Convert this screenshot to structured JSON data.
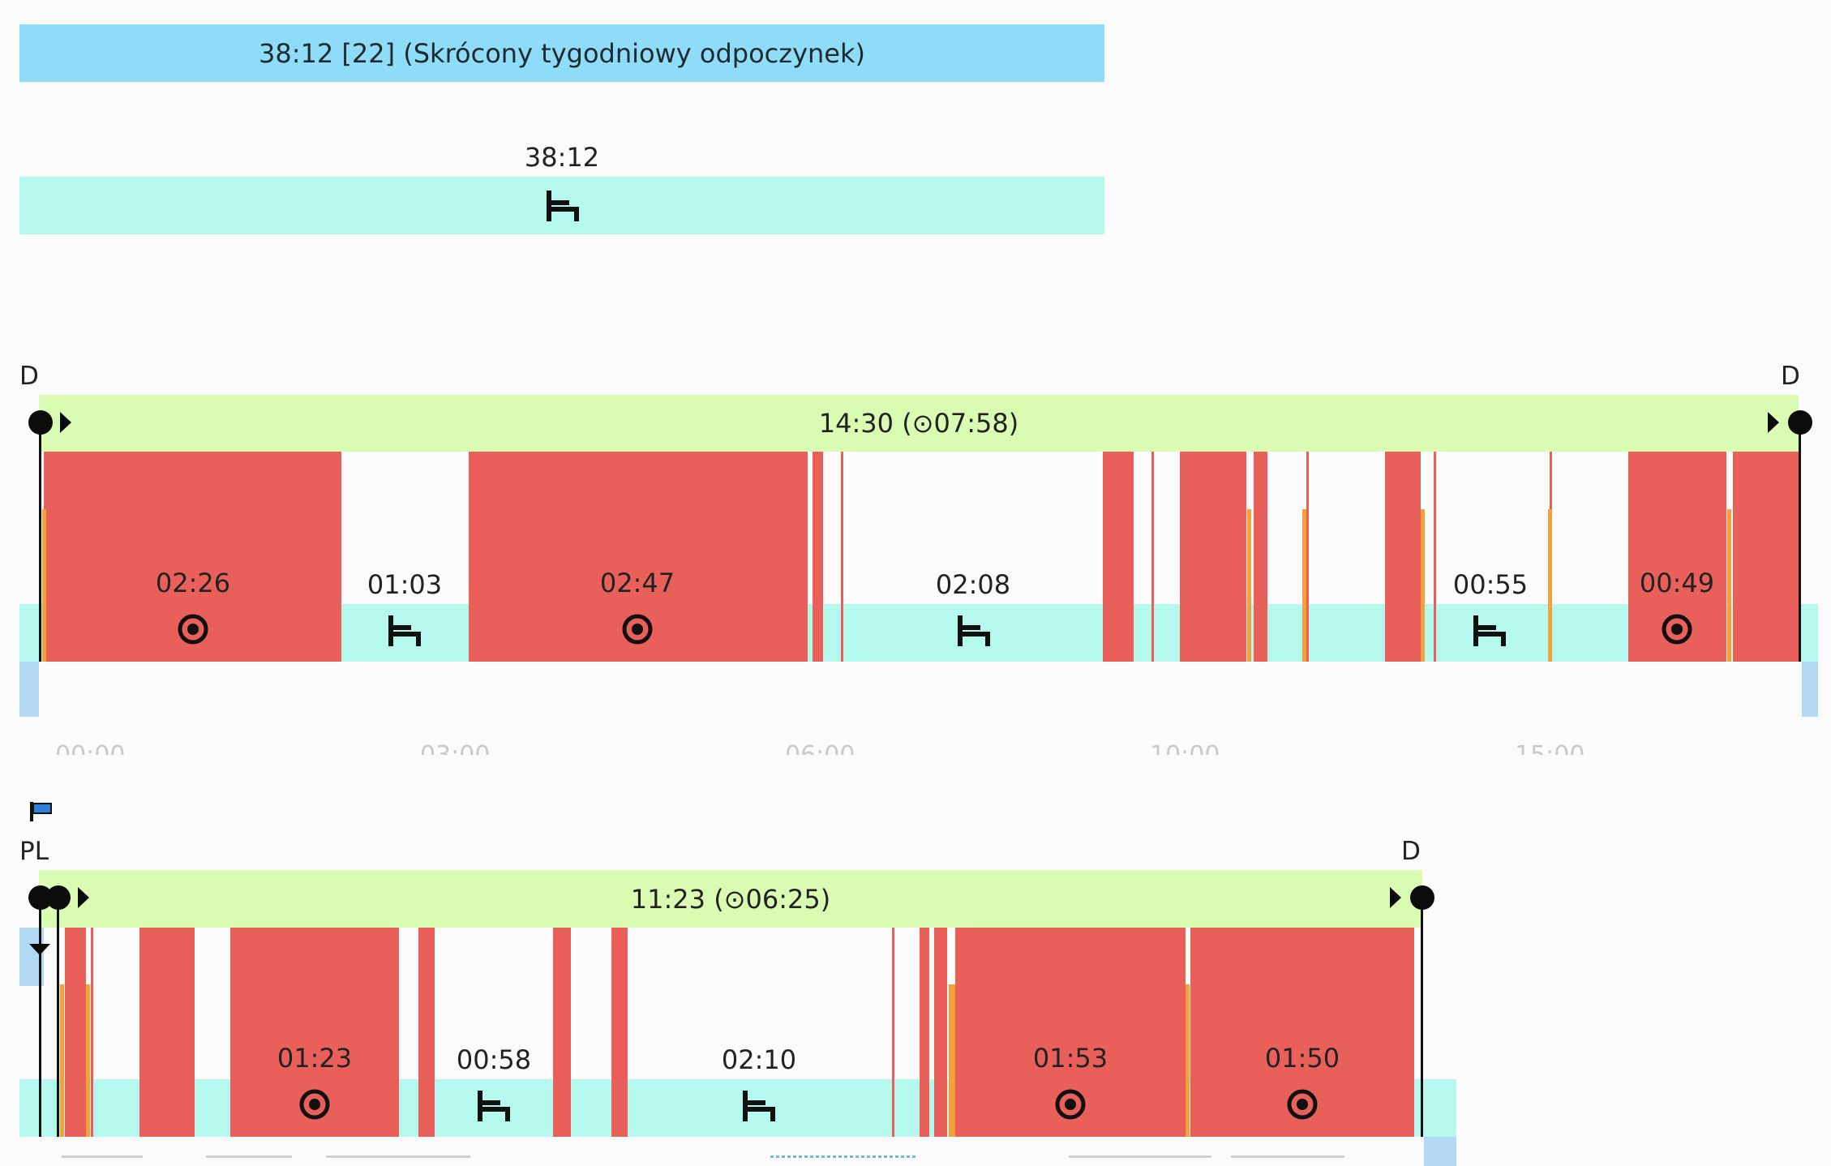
{
  "weekly_rest": {
    "title": "38:12 [22] (Skrócony tygodniowy odpoczynek)",
    "total": "38:12"
  },
  "day1": {
    "start_marker": "D",
    "end_marker": "D",
    "summary": "14:30 (⊙07:58)",
    "segments": [
      {
        "type": "drive",
        "duration": "02:26",
        "icon": "steering-wheel-icon"
      },
      {
        "type": "rest",
        "duration": "01:03",
        "icon": "bed-icon"
      },
      {
        "type": "drive",
        "duration": "02:47",
        "icon": "steering-wheel-icon"
      },
      {
        "type": "rest",
        "duration": "02:08",
        "icon": "bed-icon"
      },
      {
        "type": "rest",
        "duration": "00:55",
        "icon": "bed-icon"
      },
      {
        "type": "drive",
        "duration": "00:49",
        "icon": "steering-wheel-icon"
      }
    ],
    "axis_ticks": [
      "00:00",
      "03:00",
      "06:00",
      "10:00",
      "15:00"
    ]
  },
  "day2": {
    "start_marker": "PL",
    "end_marker": "D",
    "summary": "11:23 (⊙06:25)",
    "segments": [
      {
        "type": "drive",
        "duration": "01:23",
        "icon": "steering-wheel-icon"
      },
      {
        "type": "rest",
        "duration": "00:58",
        "icon": "bed-icon"
      },
      {
        "type": "rest",
        "duration": "02:10",
        "icon": "bed-icon"
      },
      {
        "type": "drive",
        "duration": "01:53",
        "icon": "steering-wheel-icon"
      },
      {
        "type": "drive",
        "duration": "01:50",
        "icon": "steering-wheel-icon"
      }
    ]
  },
  "colors": {
    "weekly_rest": "#8edcf7",
    "rest_band": "#b4f8ee",
    "shift_bar": "#dafbb2",
    "work": "#e9605a",
    "other_work": "#f5a139",
    "flag": "#2f7fd6"
  }
}
